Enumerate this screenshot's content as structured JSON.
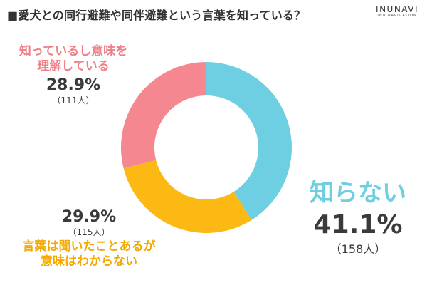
{
  "chart_data": {
    "type": "pie",
    "title": "■愛犬との同行避難や同伴避難という言葉を知っている？",
    "slices": [
      {
        "label": "知らない",
        "value": 41.1,
        "pct_text": "41.1%",
        "count_text": "（158人）",
        "color": "#6ecfe3"
      },
      {
        "label": "言葉は聞いたことあるが意味はわからない",
        "label_lines": [
          "言葉は聞いたことあるが",
          "意味はわからない"
        ],
        "value": 29.9,
        "pct_text": "29.9%",
        "count_text": "（115人）",
        "color": "#fdb913"
      },
      {
        "label": "知っているし意味を理解している",
        "label_lines": [
          "知っているし意味を",
          "理解している"
        ],
        "value": 28.9,
        "pct_text": "28.9%",
        "count_text": "（111人）",
        "color": "#f58790"
      }
    ]
  },
  "brand": {
    "name": "INUNAVI",
    "sub": "INU NAVIGATION"
  }
}
